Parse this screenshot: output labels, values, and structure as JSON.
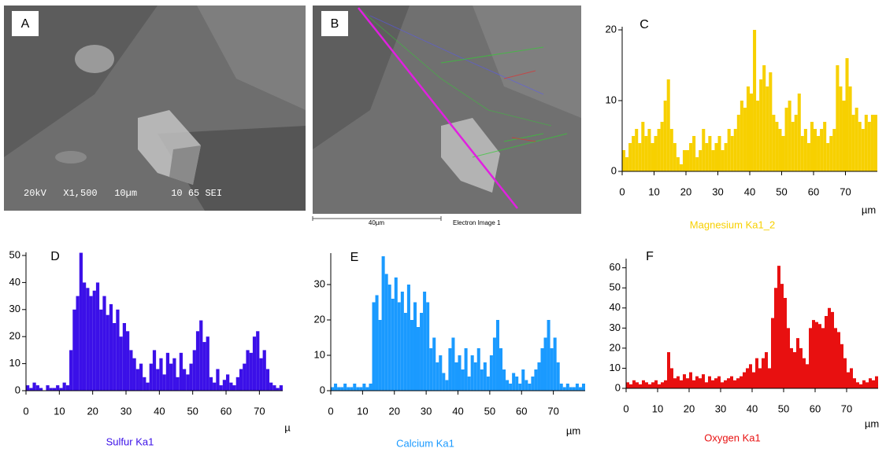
{
  "images": [
    {
      "label": "A",
      "caption": "20kV   X1,500   10µm      10 65 SEI"
    },
    {
      "label": "B",
      "scale": "40µm",
      "caption": "Electron Image 1"
    }
  ],
  "chart_data": [
    {
      "type": "histogram",
      "panel_label": "C",
      "title": "Magnesium Ka1_2",
      "xlabel": "µm",
      "color": "#f7d000",
      "bins": [
        0,
        1,
        2,
        3,
        4,
        5,
        6,
        7,
        8,
        9,
        10,
        11,
        12,
        13,
        14,
        15,
        16,
        17,
        18,
        19,
        20,
        21,
        22,
        23,
        24,
        25,
        26,
        27,
        28,
        29,
        30,
        31,
        32,
        33,
        34,
        35,
        36,
        37,
        38,
        39,
        40,
        41,
        42,
        43,
        44,
        45,
        46,
        47,
        48,
        49,
        50,
        51,
        52,
        53,
        54,
        55,
        56,
        57,
        58,
        59,
        60,
        61,
        62,
        63,
        64,
        65,
        66,
        67,
        68,
        69,
        70,
        71,
        72,
        73,
        74,
        75,
        76,
        77,
        78,
        79,
        80
      ],
      "values": [
        3,
        2,
        4,
        5,
        6,
        4,
        7,
        5,
        6,
        4,
        5,
        6,
        7,
        10,
        13,
        6,
        4,
        2,
        1,
        3,
        3,
        4,
        5,
        2,
        3,
        6,
        4,
        5,
        3,
        4,
        5,
        3,
        4,
        6,
        5,
        6,
        8,
        10,
        9,
        12,
        11,
        20,
        10,
        13,
        15,
        12,
        14,
        8,
        7,
        6,
        5,
        9,
        10,
        7,
        8,
        11,
        5,
        6,
        4,
        7,
        6,
        5,
        6,
        7,
        4,
        5,
        6,
        15,
        12,
        10,
        16,
        12,
        8,
        9,
        7,
        6,
        8,
        7,
        8,
        8
      ],
      "xlim": [
        0,
        80
      ],
      "xticks": [
        0,
        10,
        20,
        30,
        40,
        50,
        60,
        70
      ],
      "ylim": [
        0,
        20
      ],
      "yticks": [
        0,
        10,
        20
      ]
    },
    {
      "type": "histogram",
      "panel_label": "D",
      "title": "Sulfur Ka1",
      "xlabel": "µ",
      "color": "#3b10e8",
      "bins": [
        0,
        1,
        2,
        3,
        4,
        5,
        6,
        7,
        8,
        9,
        10,
        11,
        12,
        13,
        14,
        15,
        16,
        17,
        18,
        19,
        20,
        21,
        22,
        23,
        24,
        25,
        26,
        27,
        28,
        29,
        30,
        31,
        32,
        33,
        34,
        35,
        36,
        37,
        38,
        39,
        40,
        41,
        42,
        43,
        44,
        45,
        46,
        47,
        48,
        49,
        50,
        51,
        52,
        53,
        54,
        55,
        56,
        57,
        58,
        59,
        60,
        61,
        62,
        63,
        64,
        65,
        66,
        67,
        68,
        69,
        70,
        71,
        72,
        73,
        74,
        75,
        76,
        77
      ],
      "values": [
        2,
        1,
        3,
        2,
        1,
        0,
        2,
        1,
        1,
        2,
        1,
        3,
        2,
        15,
        30,
        35,
        51,
        40,
        38,
        35,
        37,
        40,
        30,
        35,
        28,
        32,
        25,
        30,
        20,
        25,
        22,
        15,
        12,
        8,
        10,
        5,
        3,
        10,
        15,
        8,
        12,
        6,
        14,
        10,
        12,
        5,
        14,
        8,
        6,
        10,
        15,
        22,
        26,
        18,
        20,
        5,
        3,
        8,
        2,
        4,
        6,
        3,
        2,
        5,
        8,
        10,
        15,
        14,
        20,
        22,
        12,
        15,
        8,
        3,
        2,
        1,
        2
      ],
      "xlim": [
        0,
        77
      ],
      "xticks": [
        0,
        10,
        20,
        30,
        40,
        50,
        60,
        70
      ],
      "ylim": [
        0,
        50
      ],
      "yticks": [
        0,
        10,
        20,
        30,
        40,
        50
      ]
    },
    {
      "type": "histogram",
      "panel_label": "E",
      "title": "Calcium Ka1",
      "xlabel": "µm",
      "color": "#1a9aff",
      "bins": [
        0,
        1,
        2,
        3,
        4,
        5,
        6,
        7,
        8,
        9,
        10,
        11,
        12,
        13,
        14,
        15,
        16,
        17,
        18,
        19,
        20,
        21,
        22,
        23,
        24,
        25,
        26,
        27,
        28,
        29,
        30,
        31,
        32,
        33,
        34,
        35,
        36,
        37,
        38,
        39,
        40,
        41,
        42,
        43,
        44,
        45,
        46,
        47,
        48,
        49,
        50,
        51,
        52,
        53,
        54,
        55,
        56,
        57,
        58,
        59,
        60,
        61,
        62,
        63,
        64,
        65,
        66,
        67,
        68,
        69,
        70,
        71,
        72,
        73,
        74,
        75,
        76,
        77,
        78,
        79,
        80
      ],
      "values": [
        1,
        2,
        1,
        1,
        2,
        1,
        1,
        2,
        1,
        1,
        2,
        1,
        2,
        25,
        27,
        20,
        38,
        33,
        30,
        26,
        32,
        25,
        28,
        22,
        30,
        20,
        25,
        18,
        22,
        28,
        25,
        12,
        15,
        8,
        10,
        5,
        3,
        12,
        15,
        8,
        10,
        6,
        12,
        4,
        10,
        8,
        12,
        6,
        8,
        4,
        10,
        15,
        20,
        12,
        6,
        3,
        2,
        5,
        4,
        2,
        6,
        3,
        2,
        4,
        6,
        8,
        12,
        15,
        20,
        12,
        15,
        8,
        2,
        1,
        2,
        1,
        1,
        2,
        1,
        2
      ],
      "xlim": [
        0,
        80
      ],
      "xticks": [
        0,
        10,
        20,
        30,
        40,
        50,
        60,
        70
      ],
      "ylim": [
        0,
        38
      ],
      "yticks": [
        0,
        10,
        20,
        30
      ]
    },
    {
      "type": "histogram",
      "panel_label": "F",
      "title": "Oxygen Ka1",
      "xlabel": "µm",
      "color": "#e81010",
      "bins": [
        0,
        1,
        2,
        3,
        4,
        5,
        6,
        7,
        8,
        9,
        10,
        11,
        12,
        13,
        14,
        15,
        16,
        17,
        18,
        19,
        20,
        21,
        22,
        23,
        24,
        25,
        26,
        27,
        28,
        29,
        30,
        31,
        32,
        33,
        34,
        35,
        36,
        37,
        38,
        39,
        40,
        41,
        42,
        43,
        44,
        45,
        46,
        47,
        48,
        49,
        50,
        51,
        52,
        53,
        54,
        55,
        56,
        57,
        58,
        59,
        60,
        61,
        62,
        63,
        64,
        65,
        66,
        67,
        68,
        69,
        70,
        71,
        72,
        73,
        74,
        75,
        76,
        77,
        78,
        79,
        80
      ],
      "values": [
        3,
        2,
        4,
        3,
        2,
        4,
        3,
        2,
        3,
        4,
        2,
        3,
        4,
        18,
        10,
        5,
        6,
        4,
        7,
        5,
        8,
        4,
        6,
        5,
        7,
        3,
        6,
        4,
        5,
        6,
        3,
        4,
        5,
        6,
        4,
        5,
        6,
        8,
        10,
        12,
        8,
        15,
        10,
        15,
        18,
        10,
        35,
        50,
        61,
        52,
        45,
        30,
        20,
        18,
        25,
        20,
        15,
        12,
        30,
        34,
        33,
        32,
        30,
        36,
        40,
        38,
        30,
        28,
        22,
        15,
        8,
        10,
        5,
        3,
        2,
        4,
        3,
        5,
        4,
        6
      ],
      "xlim": [
        0,
        80
      ],
      "xticks": [
        0,
        10,
        20,
        30,
        40,
        50,
        60,
        70
      ],
      "ylim": [
        0,
        63
      ],
      "yticks": [
        0,
        10,
        20,
        30,
        40,
        50,
        60
      ]
    }
  ]
}
